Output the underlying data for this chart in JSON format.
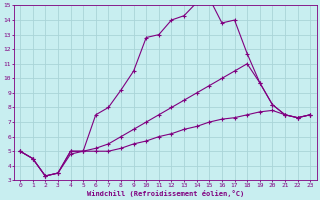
{
  "background_color": "#c8eef0",
  "grid_color": "#aad4d8",
  "line_color": "#800080",
  "xlabel": "Windchill (Refroidissement éolien,°C)",
  "xlabel_color": "#800080",
  "tick_color": "#800080",
  "xlim": [
    -0.5,
    23.5
  ],
  "ylim": [
    3,
    15
  ],
  "xticks": [
    0,
    1,
    2,
    3,
    4,
    5,
    6,
    7,
    8,
    9,
    10,
    11,
    12,
    13,
    14,
    15,
    16,
    17,
    18,
    19,
    20,
    21,
    22,
    23
  ],
  "yticks": [
    3,
    4,
    5,
    6,
    7,
    8,
    9,
    10,
    11,
    12,
    13,
    14,
    15
  ],
  "curve1_x": [
    0,
    1,
    2,
    3,
    4,
    5,
    6,
    7,
    8,
    9,
    10,
    11,
    12,
    13,
    14,
    15,
    16,
    17,
    18,
    19,
    20,
    21,
    22,
    23
  ],
  "curve1_y": [
    5.0,
    4.5,
    3.3,
    3.5,
    5.0,
    5.0,
    7.5,
    8.0,
    9.2,
    10.5,
    12.8,
    13.0,
    14.0,
    14.3,
    15.2,
    15.5,
    13.8,
    14.0,
    11.7,
    9.7,
    8.2,
    7.5,
    7.3,
    7.5
  ],
  "curve2_x": [
    0,
    1,
    2,
    3,
    4,
    5,
    6,
    7,
    8,
    9,
    10,
    11,
    12,
    13,
    14,
    15,
    16,
    17,
    18,
    19,
    20,
    21,
    22,
    23
  ],
  "curve2_y": [
    5.0,
    4.5,
    3.3,
    3.5,
    5.0,
    5.0,
    5.2,
    5.5,
    6.0,
    6.5,
    7.0,
    7.5,
    8.0,
    8.5,
    9.0,
    9.5,
    10.0,
    10.5,
    11.0,
    9.7,
    8.2,
    7.5,
    7.3,
    7.5
  ],
  "curve3_x": [
    0,
    1,
    2,
    3,
    4,
    5,
    6,
    7,
    8,
    9,
    10,
    11,
    12,
    13,
    14,
    15,
    16,
    17,
    18,
    19,
    20,
    21,
    22,
    23
  ],
  "curve3_y": [
    5.0,
    4.5,
    3.3,
    3.5,
    4.8,
    5.0,
    5.0,
    5.0,
    5.2,
    5.5,
    5.7,
    6.0,
    6.2,
    6.5,
    6.7,
    7.0,
    7.2,
    7.3,
    7.5,
    7.7,
    7.8,
    7.5,
    7.3,
    7.5
  ]
}
